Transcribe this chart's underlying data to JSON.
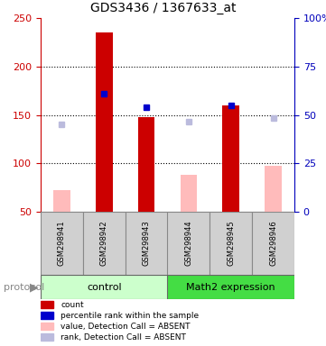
{
  "title": "GDS3436 / 1367633_at",
  "samples": [
    "GSM298941",
    "GSM298942",
    "GSM298943",
    "GSM298944",
    "GSM298945",
    "GSM298946"
  ],
  "count_values": [
    null,
    235,
    148,
    null,
    160,
    null
  ],
  "count_absent_values": [
    72,
    null,
    null,
    88,
    null,
    97
  ],
  "rank_values": [
    null,
    172,
    158,
    null,
    160,
    null
  ],
  "rank_absent_values": [
    140,
    null,
    null,
    143,
    null,
    147
  ],
  "ylim_left": [
    50,
    250
  ],
  "ylim_right": [
    0,
    100
  ],
  "left_ticks": [
    50,
    100,
    150,
    200,
    250
  ],
  "right_ticks": [
    0,
    25,
    50,
    75,
    100
  ],
  "right_tick_labels": [
    "0",
    "25",
    "50",
    "75",
    "100%"
  ],
  "control_color_light": "#ccffcc",
  "control_color_dark": "#44dd44",
  "math2_color": "#44dd44",
  "sample_box_color": "#d0d0d0",
  "count_color": "#cc0000",
  "rank_color": "#0000cc",
  "count_absent_color": "#ffbbbb",
  "rank_absent_color": "#bbbbdd",
  "left_axis_color": "#cc0000",
  "right_axis_color": "#0000bb",
  "bar_width": 0.4,
  "legend_labels": [
    "count",
    "percentile rank within the sample",
    "value, Detection Call = ABSENT",
    "rank, Detection Call = ABSENT"
  ],
  "legend_colors": [
    "#cc0000",
    "#0000cc",
    "#ffbbbb",
    "#bbbbdd"
  ]
}
